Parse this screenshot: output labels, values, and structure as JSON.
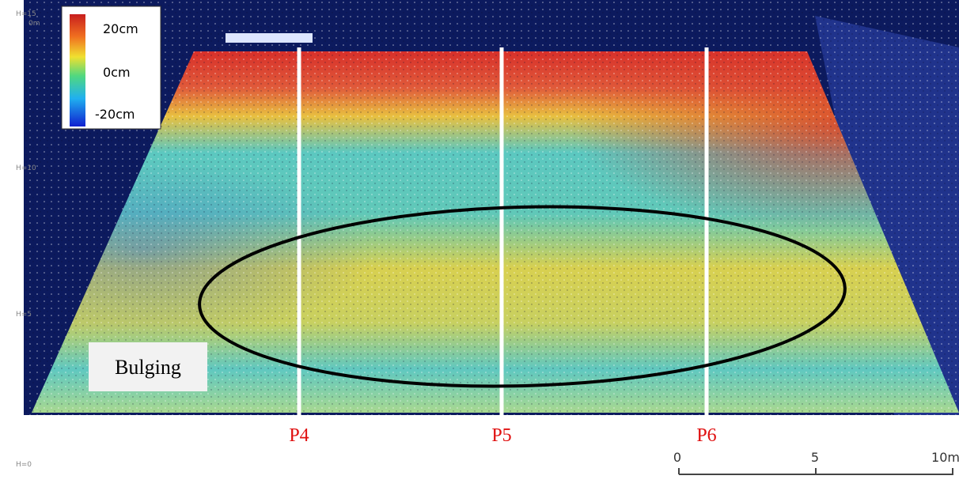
{
  "legend": {
    "labels": [
      "20cm",
      "0cm",
      "-20cm"
    ]
  },
  "annotation": "Bulging",
  "profiles": [
    "P4",
    "P5",
    "P6"
  ],
  "scale": {
    "labels": [
      "0",
      "5",
      "10m"
    ]
  },
  "height_labels": [
    "H=15",
    "0m",
    "H=10",
    "H=5",
    "H=0"
  ]
}
